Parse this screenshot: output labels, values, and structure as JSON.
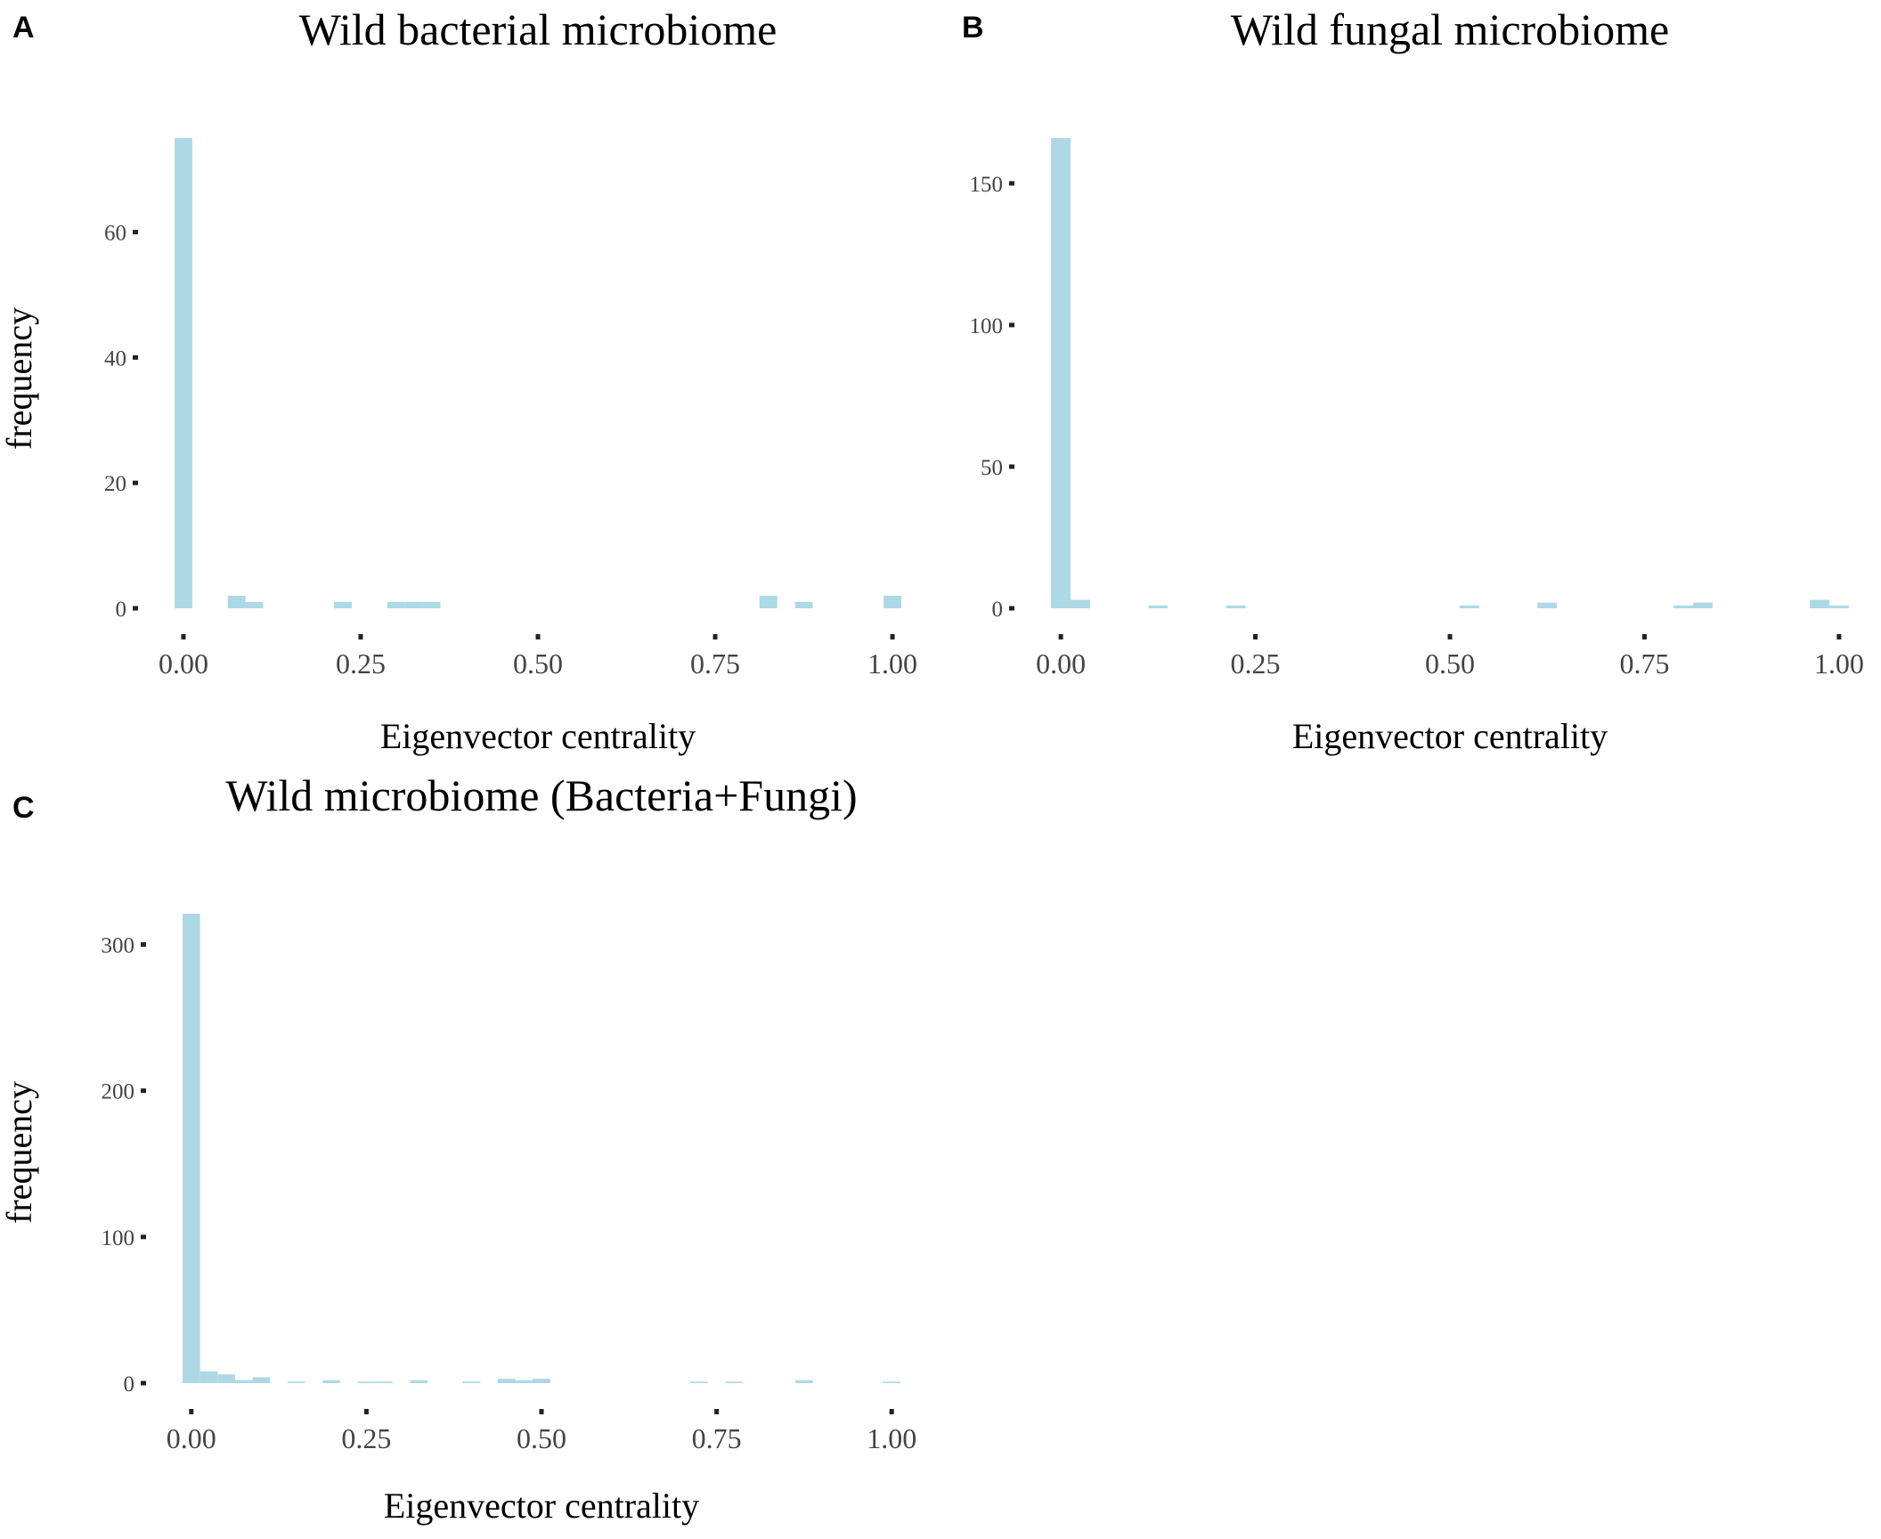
{
  "panels": [
    {
      "label": "A"
    },
    {
      "label": "B"
    },
    {
      "label": "C"
    }
  ],
  "colors": {
    "bar": "#add8e6",
    "tick": "#222222",
    "tick_label": "#444444"
  },
  "chart_data": [
    {
      "type": "bar",
      "title": "Wild bacterial microbiome",
      "xlabel": "Eigenvector centrality",
      "ylabel": "frequency",
      "xlim": [
        -0.015,
        1.015
      ],
      "ylim": [
        0,
        75
      ],
      "xticks": [
        "0.00",
        "0.25",
        "0.50",
        "0.75",
        "1.00"
      ],
      "yticks": [
        "0",
        "20",
        "40",
        "60"
      ],
      "grid": false,
      "bin_width": 0.025,
      "bins": [
        {
          "x": 0.0,
          "count": 75
        },
        {
          "x": 0.075,
          "count": 2
        },
        {
          "x": 0.1,
          "count": 1
        },
        {
          "x": 0.225,
          "count": 1
        },
        {
          "x": 0.3,
          "count": 1
        },
        {
          "x": 0.325,
          "count": 1
        },
        {
          "x": 0.35,
          "count": 1
        },
        {
          "x": 0.825,
          "count": 2
        },
        {
          "x": 0.875,
          "count": 1
        },
        {
          "x": 1.0,
          "count": 2
        }
      ]
    },
    {
      "type": "bar",
      "title": "Wild fungal microbiome",
      "xlabel": "Eigenvector centrality",
      "ylabel": "",
      "xlim": [
        -0.015,
        1.015
      ],
      "ylim": [
        0,
        166
      ],
      "xticks": [
        "0.00",
        "0.25",
        "0.50",
        "0.75",
        "1.00"
      ],
      "yticks": [
        "0",
        "50",
        "100",
        "150"
      ],
      "grid": false,
      "bin_width": 0.025,
      "bins": [
        {
          "x": 0.0,
          "count": 166
        },
        {
          "x": 0.025,
          "count": 3
        },
        {
          "x": 0.125,
          "count": 1
        },
        {
          "x": 0.225,
          "count": 1
        },
        {
          "x": 0.525,
          "count": 1
        },
        {
          "x": 0.625,
          "count": 2
        },
        {
          "x": 0.8,
          "count": 1
        },
        {
          "x": 0.825,
          "count": 2
        },
        {
          "x": 0.975,
          "count": 3
        },
        {
          "x": 1.0,
          "count": 1
        }
      ]
    },
    {
      "type": "bar",
      "title": "Wild microbiome (Bacteria+Fungi)",
      "xlabel": "Eigenvector centrality",
      "ylabel": "frequency",
      "xlim": [
        -0.015,
        1.015
      ],
      "ylim": [
        0,
        321
      ],
      "xticks": [
        "0.00",
        "0.25",
        "0.50",
        "0.75",
        "1.00"
      ],
      "yticks": [
        "0",
        "100",
        "200",
        "300"
      ],
      "grid": false,
      "bin_width": 0.025,
      "bins": [
        {
          "x": 0.0,
          "count": 321
        },
        {
          "x": 0.025,
          "count": 8
        },
        {
          "x": 0.05,
          "count": 6
        },
        {
          "x": 0.075,
          "count": 2
        },
        {
          "x": 0.1,
          "count": 4
        },
        {
          "x": 0.15,
          "count": 1
        },
        {
          "x": 0.2,
          "count": 2
        },
        {
          "x": 0.25,
          "count": 1
        },
        {
          "x": 0.275,
          "count": 1
        },
        {
          "x": 0.325,
          "count": 2
        },
        {
          "x": 0.4,
          "count": 1
        },
        {
          "x": 0.45,
          "count": 3
        },
        {
          "x": 0.475,
          "count": 2
        },
        {
          "x": 0.5,
          "count": 3
        },
        {
          "x": 0.725,
          "count": 1
        },
        {
          "x": 0.775,
          "count": 1
        },
        {
          "x": 0.875,
          "count": 2
        },
        {
          "x": 1.0,
          "count": 1
        }
      ]
    }
  ]
}
